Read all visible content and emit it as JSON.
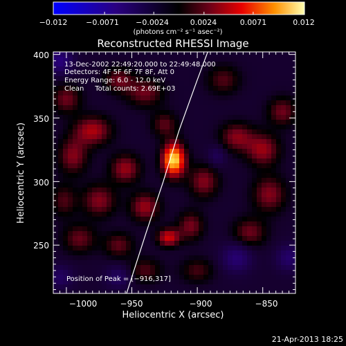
{
  "chart_data": {
    "type": "heatmap",
    "title": "Reconstructed RHESSI Image",
    "xlabel": "Heliocentric X (arcsec)",
    "ylabel": "Heliocentric Y (arcsec)",
    "xlim": [
      -1010,
      -825
    ],
    "ylim": [
      212,
      402
    ],
    "x_ticks": [
      -1000,
      -950,
      -900,
      -850
    ],
    "x_tick_labels": [
      "−1000",
      "−950",
      "−900",
      "−850"
    ],
    "y_ticks": [
      250,
      300,
      350,
      400
    ],
    "y_tick_labels": [
      "250",
      "300",
      "350",
      "400"
    ],
    "colorbar": {
      "range": [
        -0.012,
        0.012
      ],
      "ticks": [
        -0.012,
        -0.0071,
        -0.0024,
        0.0024,
        0.0071,
        0.012
      ],
      "tick_labels": [
        "−0.012",
        "−0.0071",
        "−0.0024",
        "0.0024",
        "0.0071",
        "0.012"
      ],
      "unit_label": "(photons cm⁻² s⁻¹ asec⁻²)"
    },
    "annotations": [
      "13-Dec-2002 22:49:20.000 to 22:49:48.000",
      "Detectors: 4F 5F 6F 7F 8F, Att 0",
      "Energy Range: 6.0 - 12.0 keV",
      "Clean     Total counts: 2.69E+03"
    ],
    "peak_label": "Position of Peak = [−916,317]",
    "peak": [
      -916,
      317
    ],
    "limb_curve": [
      [
        -954,
        212
      ],
      [
        -939,
        260
      ],
      [
        -926,
        300
      ],
      [
        -914,
        340
      ],
      [
        -900,
        380
      ],
      [
        -892,
        402
      ]
    ],
    "sources": [
      {
        "x": -918,
        "y": 317,
        "amp": 0.0125,
        "sx": 6,
        "sy": 9
      },
      {
        "x": -922,
        "y": 256,
        "amp": 0.0065,
        "sx": 6,
        "sy": 5
      },
      {
        "x": -980,
        "y": 340,
        "amp": 0.0055,
        "sx": 10,
        "sy": 8
      },
      {
        "x": -995,
        "y": 320,
        "amp": 0.0045,
        "sx": 8,
        "sy": 10
      },
      {
        "x": -955,
        "y": 310,
        "amp": 0.005,
        "sx": 8,
        "sy": 8
      },
      {
        "x": -975,
        "y": 285,
        "amp": 0.0045,
        "sx": 9,
        "sy": 9
      },
      {
        "x": -940,
        "y": 370,
        "amp": 0.004,
        "sx": 10,
        "sy": 8
      },
      {
        "x": -960,
        "y": 380,
        "amp": 0.0038,
        "sx": 8,
        "sy": 7
      },
      {
        "x": -1000,
        "y": 365,
        "amp": 0.004,
        "sx": 8,
        "sy": 8
      },
      {
        "x": -940,
        "y": 280,
        "amp": 0.005,
        "sx": 8,
        "sy": 8
      },
      {
        "x": -895,
        "y": 300,
        "amp": 0.0045,
        "sx": 8,
        "sy": 9
      },
      {
        "x": -905,
        "y": 265,
        "amp": 0.0042,
        "sx": 7,
        "sy": 8
      },
      {
        "x": -870,
        "y": 335,
        "amp": 0.0045,
        "sx": 9,
        "sy": 8
      },
      {
        "x": -850,
        "y": 325,
        "amp": 0.005,
        "sx": 9,
        "sy": 9
      },
      {
        "x": -845,
        "y": 290,
        "amp": 0.0045,
        "sx": 9,
        "sy": 10
      },
      {
        "x": -860,
        "y": 260,
        "amp": 0.004,
        "sx": 9,
        "sy": 8
      },
      {
        "x": -835,
        "y": 355,
        "amp": 0.004,
        "sx": 8,
        "sy": 8
      },
      {
        "x": -990,
        "y": 255,
        "amp": 0.0038,
        "sx": 9,
        "sy": 8
      },
      {
        "x": -960,
        "y": 250,
        "amp": 0.0036,
        "sx": 8,
        "sy": 7
      },
      {
        "x": -940,
        "y": 230,
        "amp": 0.0032,
        "sx": 9,
        "sy": 7
      },
      {
        "x": -900,
        "y": 230,
        "amp": 0.003,
        "sx": 9,
        "sy": 7
      },
      {
        "x": -880,
        "y": 380,
        "amp": 0.0033,
        "sx": 9,
        "sy": 8
      },
      {
        "x": -1002,
        "y": 285,
        "amp": 0.0032,
        "sx": 7,
        "sy": 9
      },
      {
        "x": -925,
        "y": 345,
        "amp": 0.0035,
        "sx": 7,
        "sy": 7
      },
      {
        "x": -1005,
        "y": 395,
        "amp": -0.0045,
        "sx": 7,
        "sy": 7
      },
      {
        "x": -870,
        "y": 240,
        "amp": -0.004,
        "sx": 8,
        "sy": 8
      },
      {
        "x": -830,
        "y": 240,
        "amp": -0.0035,
        "sx": 7,
        "sy": 7
      },
      {
        "x": -885,
        "y": 320,
        "amp": -0.0025,
        "sx": 5,
        "sy": 6
      },
      {
        "x": -960,
        "y": 225,
        "amp": -0.003,
        "sx": 7,
        "sy": 6
      },
      {
        "x": -1005,
        "y": 225,
        "amp": -0.003,
        "sx": 7,
        "sy": 6
      }
    ]
  },
  "footer_timestamp": "21-Apr-2013 18:25"
}
